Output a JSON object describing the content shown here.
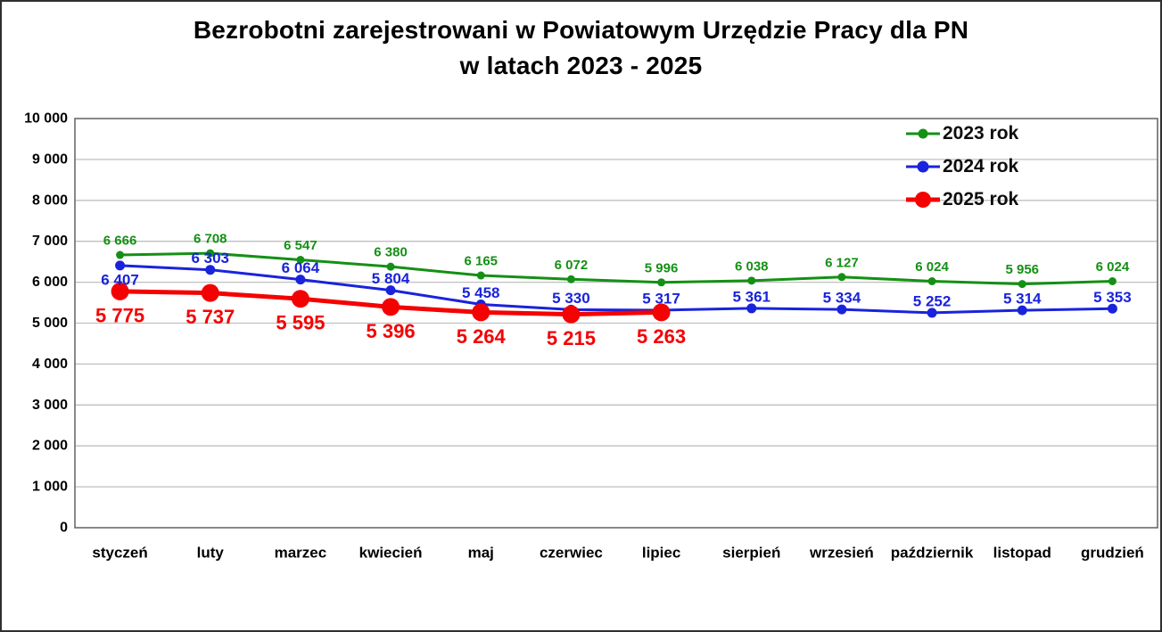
{
  "title": {
    "line1": "Bezrobotni zarejestrowani w Powiatowym Urzędzie Pracy dla PN",
    "line2": "w latach 2023 - 2025"
  },
  "chart_data": {
    "type": "line",
    "title": "Bezrobotni zarejestrowani w Powiatowym Urzędzie Pracy dla PN w latach 2023 - 2025",
    "categories": [
      "styczeń",
      "luty",
      "marzec",
      "kwiecień",
      "maj",
      "czerwiec",
      "lipiec",
      "sierpień",
      "wrzesień",
      "październik",
      "listopad",
      "grudzień"
    ],
    "series": [
      {
        "name": "2023 rok",
        "color": "#149014",
        "values": [
          6666,
          6708,
          6547,
          6380,
          6165,
          6072,
          5996,
          6038,
          6127,
          6024,
          5956,
          6024
        ]
      },
      {
        "name": "2024 rok",
        "color": "#1923DC",
        "values": [
          6407,
          6303,
          6064,
          5804,
          5458,
          5330,
          5317,
          5361,
          5334,
          5252,
          5314,
          5353
        ]
      },
      {
        "name": "2025 rok",
        "color": "#F40202",
        "values": [
          5775,
          5737,
          5595,
          5396,
          5264,
          5215,
          5263
        ]
      }
    ],
    "xlabel": "",
    "ylabel": "",
    "ylim": [
      0,
      10000
    ],
    "yticks": [
      0,
      1000,
      2000,
      3000,
      4000,
      5000,
      6000,
      7000,
      8000,
      9000,
      10000
    ],
    "grid": true,
    "data_labels": true,
    "legend_position": "top-right",
    "number_format": "space-thousands"
  },
  "colors": {
    "grid": "#BFBFBF",
    "plot_frame": "#6B6B6B",
    "axis_text": "#000000",
    "legend_text": "#0D0D0D",
    "background": "#FFFFFF"
  }
}
